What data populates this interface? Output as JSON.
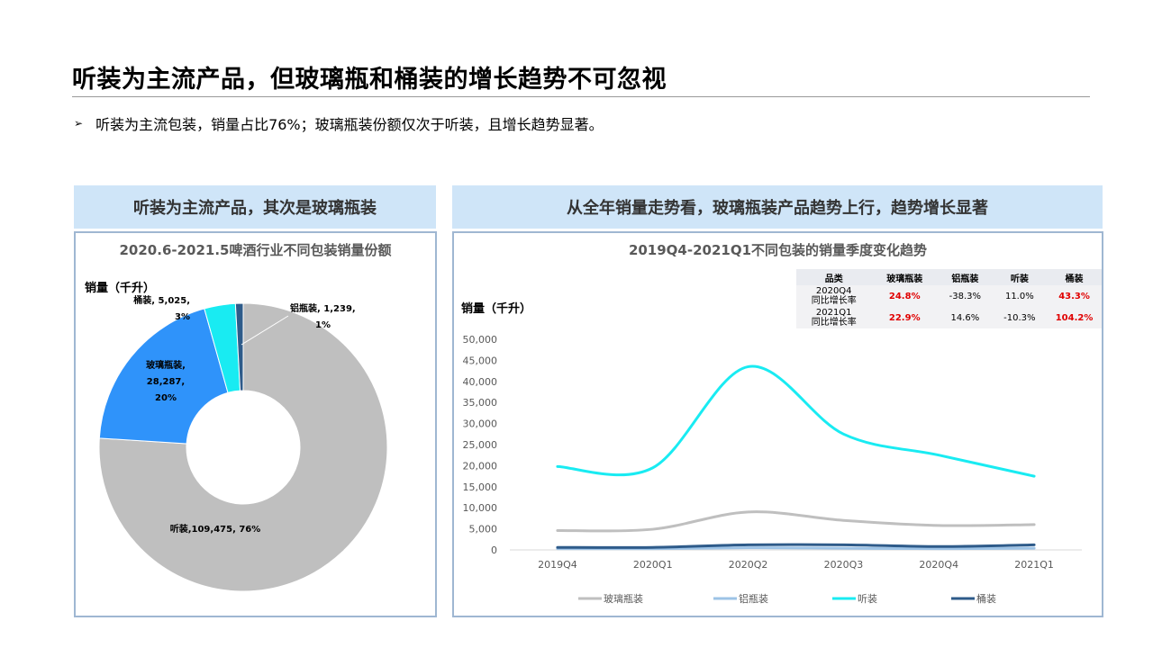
{
  "title": "听装为主流产品，但玻璃瓶和桶装的增长趋势不可忽视",
  "bullet": {
    "marker": "➢",
    "text": "听装为主流包装，销量占比76%；玻璃瓶装份额仅次于听装，且增长趋势显著。"
  },
  "left_panel": {
    "header": "听装为主流产品，其次是玻璃瓶装",
    "chart_title": "2020.6-2021.5啤酒行业不同包装销量份额",
    "unit": "销量（千升）"
  },
  "right_panel": {
    "header": "从全年销量走势看，玻璃瓶装产品趋势上行，趋势增长显著",
    "chart_title": "2019Q4-2021Q1不同包装的销量季度变化趋势",
    "unit": "销量（千升）"
  },
  "chart_data": [
    {
      "type": "pie",
      "donut": true,
      "title": "2020.6-2021.5啤酒行业不同包装销量份额",
      "ylabel": "销量（千升）",
      "slices": [
        {
          "name": "听装",
          "value": 109475,
          "percent": "76%",
          "color": "#bfbfbf",
          "label": "听装,109,475, 76%"
        },
        {
          "name": "玻璃瓶装",
          "value": 28287,
          "percent": "20%",
          "color": "#2f93fa",
          "label_lines": [
            "玻璃瓶装,",
            "28,287,",
            "20%"
          ]
        },
        {
          "name": "桶装",
          "value": 5025,
          "percent": "3%",
          "color": "#19ebf2",
          "label_lines": [
            "桶装, 5,025,",
            "3%"
          ]
        },
        {
          "name": "铝瓶装",
          "value": 1239,
          "percent": "1%",
          "color": "#2e5b8a",
          "label_lines": [
            "铝瓶装, 1,239,",
            "1%"
          ]
        }
      ]
    },
    {
      "type": "line",
      "title": "2019Q4-2021Q1不同包装的销量季度变化趋势",
      "ylabel": "销量（千升）",
      "categories": [
        "2019Q4",
        "2020Q1",
        "2020Q2",
        "2020Q3",
        "2020Q4",
        "2021Q1"
      ],
      "ylim": [
        0,
        50000
      ],
      "yticks": [
        0,
        5000,
        10000,
        15000,
        20000,
        25000,
        30000,
        35000,
        40000,
        45000,
        50000
      ],
      "ytick_labels": [
        "0",
        "5,000",
        "10,000",
        "15,000",
        "20,000",
        "25,000",
        "30,000",
        "35,000",
        "40,000",
        "45,000",
        "50,000"
      ],
      "grid": false,
      "legend": "bottom",
      "series": [
        {
          "name": "玻璃瓶装",
          "color": "#bfbfbf",
          "values": [
            4600,
            4900,
            9000,
            7000,
            5800,
            6000
          ]
        },
        {
          "name": "铝瓶装",
          "color": "#9dc3e6",
          "values": [
            300,
            300,
            500,
            400,
            300,
            400
          ]
        },
        {
          "name": "听装",
          "color": "#19ebf2",
          "values": [
            19800,
            19500,
            43500,
            27500,
            22500,
            17500
          ]
        },
        {
          "name": "桶装",
          "color": "#2e5b8a",
          "values": [
            600,
            600,
            1200,
            1200,
            800,
            1200
          ]
        }
      ],
      "table": {
        "headers": [
          "品类",
          "玻璃瓶装",
          "铝瓶装",
          "听装",
          "桶装"
        ],
        "rows": [
          {
            "label": [
              "2020Q4",
              "同比增长率"
            ],
            "cells": [
              "24.8%",
              "-38.3%",
              "11.0%",
              "43.3%"
            ],
            "highlight": [
              true,
              false,
              false,
              true
            ]
          },
          {
            "label": [
              "2021Q1",
              "同比增长率"
            ],
            "cells": [
              "22.9%",
              "14.6%",
              "-10.3%",
              "104.2%"
            ],
            "highlight": [
              true,
              false,
              false,
              true
            ]
          }
        ]
      }
    }
  ]
}
